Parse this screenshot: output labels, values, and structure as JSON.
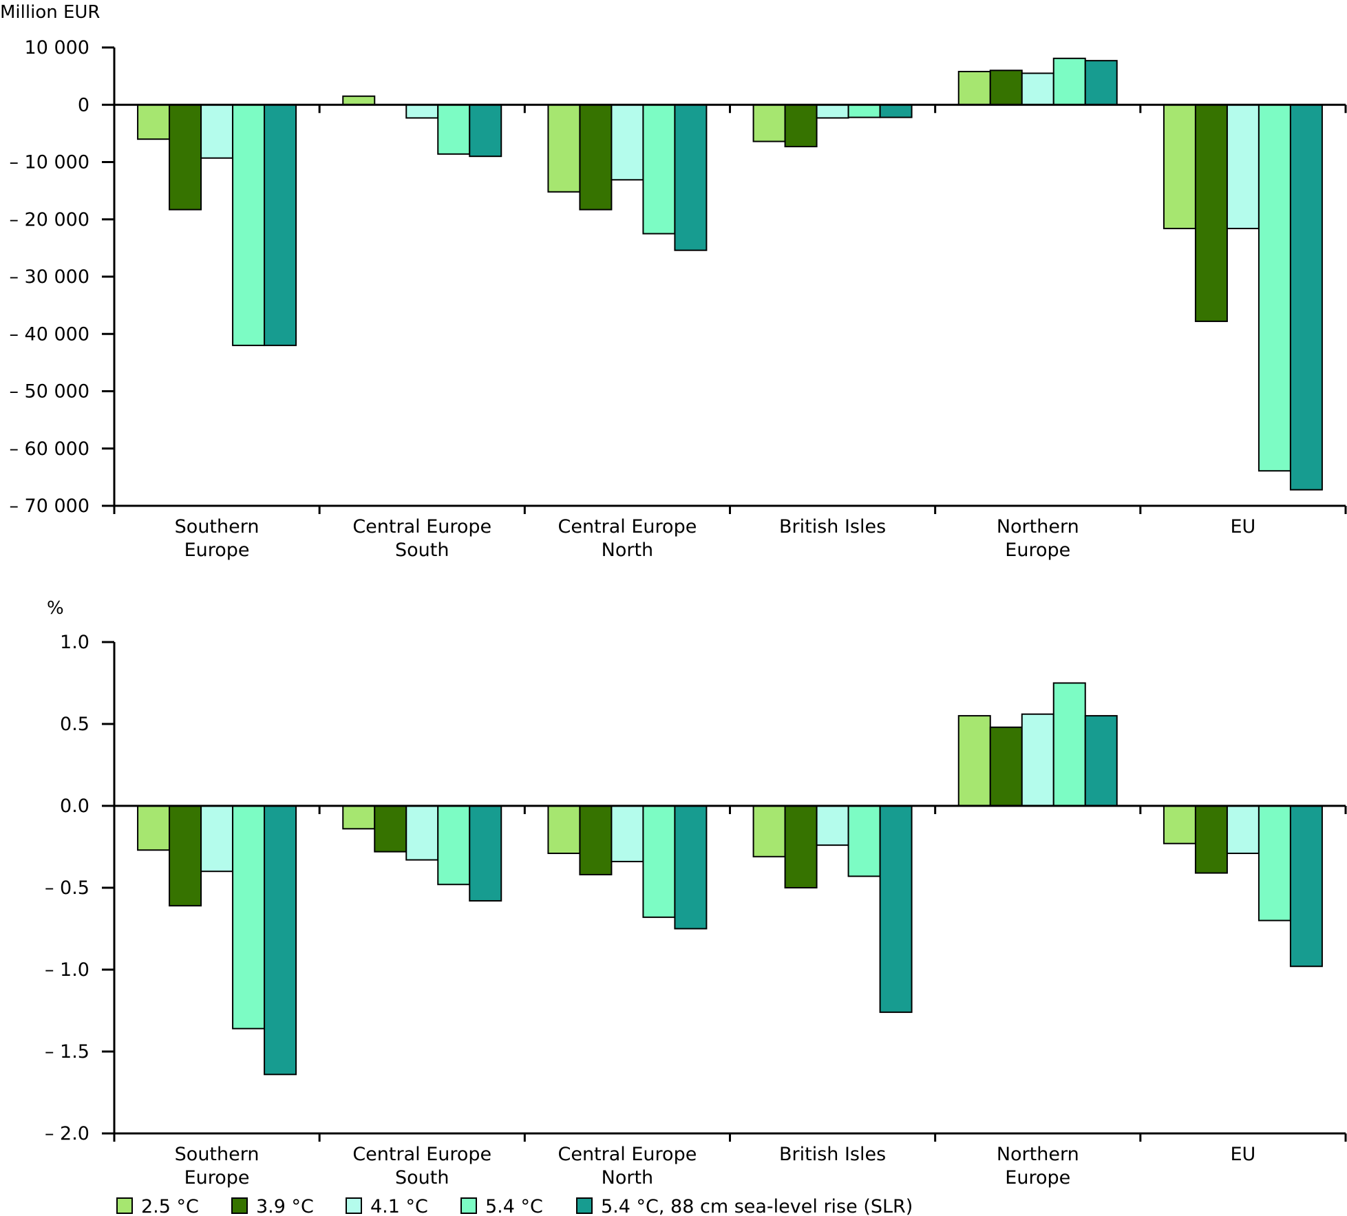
{
  "chart_data": [
    {
      "type": "bar",
      "title": "",
      "ylabel": "Million EUR",
      "xlabel": "",
      "ylim": [
        -70000,
        10000
      ],
      "yticks": [
        10000,
        0,
        -10000,
        -20000,
        -30000,
        -40000,
        -50000,
        -60000,
        -70000
      ],
      "ytick_labels": [
        "10 000",
        "0",
        "– 10 000",
        "– 20 000",
        "– 30 000",
        "– 40 000",
        "– 50 000",
        "– 60 000",
        "– 70 000"
      ],
      "grid": false,
      "categories": [
        [
          "Southern",
          "Europe"
        ],
        [
          "Central Europe",
          "South"
        ],
        [
          "Central Europe",
          "North"
        ],
        [
          "British Isles"
        ],
        [
          "Northern",
          "Europe"
        ],
        [
          "EU"
        ]
      ],
      "series": [
        {
          "name": "2.5 °C",
          "values": [
            -6000,
            1500,
            -15200,
            -6400,
            5800,
            -21600
          ]
        },
        {
          "name": "3.9 °C",
          "values": [
            -18300,
            0,
            -18300,
            -7300,
            6000,
            -37800
          ]
        },
        {
          "name": "4.1 °C",
          "values": [
            -9300,
            -2300,
            -13100,
            -2300,
            5500,
            -21600
          ]
        },
        {
          "name": "5.4 °C",
          "values": [
            -42000,
            -8600,
            -22500,
            -2200,
            8100,
            -63900
          ]
        },
        {
          "name": "5.4 °C, 88 cm sea-level rise (SLR)",
          "values": [
            -42000,
            -9000,
            -25400,
            -2200,
            7700,
            -67200
          ]
        }
      ]
    },
    {
      "type": "bar",
      "title": "",
      "ylabel": "%",
      "xlabel": "",
      "ylim": [
        -2.0,
        1.0
      ],
      "yticks": [
        1.0,
        0.5,
        0.0,
        -0.5,
        -1.0,
        -1.5,
        -2.0
      ],
      "ytick_labels": [
        "1.0",
        "0.5",
        "0.0",
        "– 0.5",
        "– 1.0",
        "– 1.5",
        "– 2.0"
      ],
      "grid": false,
      "categories": [
        [
          "Southern",
          "Europe"
        ],
        [
          "Central Europe",
          "South"
        ],
        [
          "Central Europe",
          "North"
        ],
        [
          "British Isles"
        ],
        [
          "Northern",
          "Europe"
        ],
        [
          "EU"
        ]
      ],
      "series": [
        {
          "name": "2.5 °C",
          "values": [
            -0.27,
            -0.14,
            -0.29,
            -0.31,
            0.55,
            -0.23
          ]
        },
        {
          "name": "3.9 °C",
          "values": [
            -0.61,
            -0.28,
            -0.42,
            -0.5,
            0.48,
            -0.41
          ]
        },
        {
          "name": "4.1 °C",
          "values": [
            -0.4,
            -0.33,
            -0.34,
            -0.24,
            0.56,
            -0.29
          ]
        },
        {
          "name": "5.4 °C",
          "values": [
            -1.36,
            -0.48,
            -0.68,
            -0.43,
            0.75,
            -0.7
          ]
        },
        {
          "name": "5.4 °C, 88 cm sea-level rise (SLR)",
          "values": [
            -1.64,
            -0.58,
            -0.75,
            -1.26,
            0.55,
            -0.98
          ]
        }
      ]
    }
  ],
  "legend": {
    "placement": "bottom-left",
    "items": [
      {
        "label": "2.5 °C",
        "color": "#a6e670"
      },
      {
        "label": "3.9 °C",
        "color": "#367300"
      },
      {
        "label": "4.1 °C",
        "color": "#b4fcec"
      },
      {
        "label": "5.4 °C",
        "color": "#7cfcc4"
      },
      {
        "label": "5.4 °C, 88 cm sea-level rise (SLR)",
        "color": "#179c90"
      }
    ]
  }
}
